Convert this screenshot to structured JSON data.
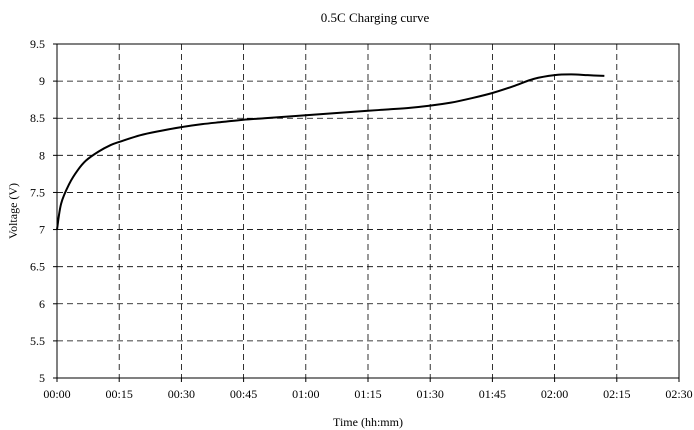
{
  "chart_data": {
    "type": "line",
    "title": "0.5C Charging curve",
    "xlabel": "Time (hh:mm)",
    "ylabel": "Voltage (V)",
    "xlim": [
      "00:00",
      "02:30"
    ],
    "ylim": [
      5,
      9.5
    ],
    "x_ticks": [
      "00:00",
      "00:15",
      "00:30",
      "00:45",
      "01:00",
      "01:15",
      "01:30",
      "01:45",
      "02:00",
      "02:15",
      "02:30"
    ],
    "y_ticks": [
      "5",
      "5.5",
      "6",
      "6.5",
      "7",
      "7.5",
      "8",
      "8.5",
      "9",
      "9.5"
    ],
    "grid": true,
    "legend": "none",
    "series": [
      {
        "color": "#000000",
        "x": [
          "00:00",
          "00:01",
          "00:03",
          "00:05",
          "00:07",
          "00:10",
          "00:13",
          "00:15",
          "00:20",
          "00:25",
          "00:30",
          "00:35",
          "00:40",
          "00:45",
          "00:50",
          "00:55",
          "01:00",
          "01:05",
          "01:10",
          "01:15",
          "01:20",
          "01:25",
          "01:30",
          "01:35",
          "01:40",
          "01:45",
          "01:50",
          "01:55",
          "02:00",
          "02:04",
          "02:08",
          "02:12"
        ],
        "y": [
          7.0,
          7.35,
          7.62,
          7.8,
          7.93,
          8.05,
          8.14,
          8.18,
          8.27,
          8.33,
          8.38,
          8.42,
          8.45,
          8.48,
          8.5,
          8.52,
          8.54,
          8.56,
          8.58,
          8.6,
          8.62,
          8.64,
          8.67,
          8.71,
          8.77,
          8.84,
          8.93,
          9.03,
          9.08,
          9.09,
          9.08,
          9.07
        ]
      }
    ]
  }
}
